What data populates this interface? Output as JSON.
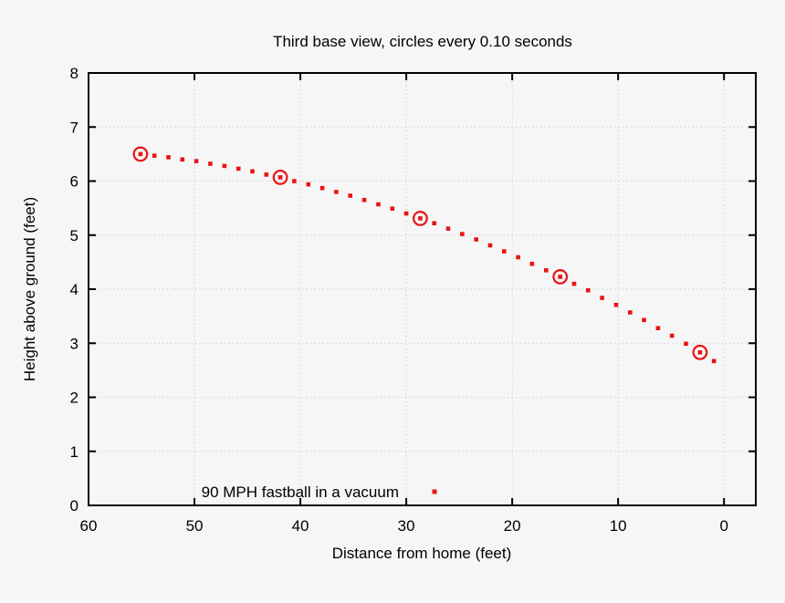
{
  "chart_data": {
    "type": "scatter",
    "title": "Third base view, circles every 0.10 seconds",
    "xlabel": "Distance from home (feet)",
    "ylabel": "Height above ground (feet)",
    "xlim": [
      60,
      -3
    ],
    "ylim": [
      0,
      8
    ],
    "x_axis_reversed": true,
    "x_ticks": [
      60,
      50,
      40,
      30,
      20,
      10,
      0
    ],
    "y_ticks": [
      0,
      1,
      2,
      3,
      4,
      5,
      6,
      7,
      8
    ],
    "grid": true,
    "legend": {
      "label": "90 MPH fastball in a vacuum",
      "position": "bottom-center",
      "marker": "small-red-square"
    },
    "colors": {
      "background": "#f6f6f6",
      "axis": "#000000",
      "grid": "#d0d0d0",
      "series_red": "#e81414"
    },
    "series": [
      {
        "name": "90 MPH fastball in a vacuum",
        "marker": "small-square",
        "point_interval_seconds": 0.01,
        "circle_interval_seconds": 0.1,
        "circled_point_indices": [
          0,
          10,
          20,
          30,
          40
        ],
        "points": [
          [
            55.1,
            6.5
          ],
          [
            53.78,
            6.47
          ],
          [
            52.46,
            6.44
          ],
          [
            51.14,
            6.4
          ],
          [
            49.82,
            6.37
          ],
          [
            48.5,
            6.32
          ],
          [
            47.17,
            6.28
          ],
          [
            45.85,
            6.23
          ],
          [
            44.53,
            6.18
          ],
          [
            43.21,
            6.12
          ],
          [
            41.89,
            6.07
          ],
          [
            40.57,
            6.0
          ],
          [
            39.25,
            5.94
          ],
          [
            37.93,
            5.87
          ],
          [
            36.61,
            5.8
          ],
          [
            35.29,
            5.73
          ],
          [
            33.96,
            5.65
          ],
          [
            32.64,
            5.57
          ],
          [
            31.32,
            5.49
          ],
          [
            30.0,
            5.4
          ],
          [
            28.68,
            5.31
          ],
          [
            27.36,
            5.22
          ],
          [
            26.04,
            5.12
          ],
          [
            24.72,
            5.02
          ],
          [
            23.4,
            4.92
          ],
          [
            22.08,
            4.81
          ],
          [
            20.76,
            4.7
          ],
          [
            19.44,
            4.59
          ],
          [
            18.12,
            4.47
          ],
          [
            16.8,
            4.35
          ],
          [
            15.47,
            4.23
          ],
          [
            14.15,
            4.1
          ],
          [
            12.83,
            3.98
          ],
          [
            11.51,
            3.84
          ],
          [
            10.19,
            3.71
          ],
          [
            8.87,
            3.57
          ],
          [
            7.55,
            3.43
          ],
          [
            6.23,
            3.28
          ],
          [
            4.91,
            3.14
          ],
          [
            3.59,
            2.99
          ],
          [
            2.27,
            2.83
          ],
          [
            0.95,
            2.67
          ]
        ]
      }
    ]
  }
}
